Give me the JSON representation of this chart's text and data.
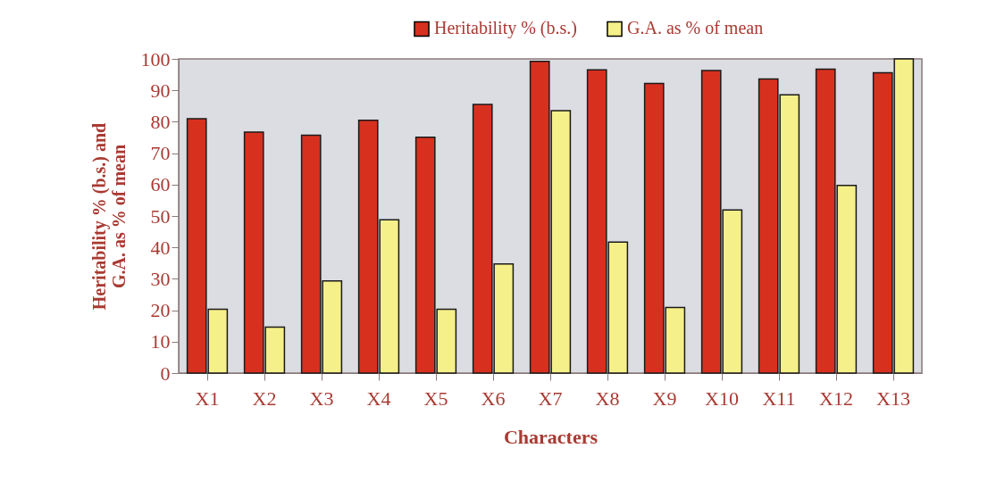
{
  "chart_data": {
    "type": "bar",
    "xlabel": "Characters",
    "ylabel": "Heritability % (b.s.) and G.A. as % of mean",
    "categories": [
      "X1",
      "X2",
      "X3",
      "X4",
      "X5",
      "X6",
      "X7",
      "X8",
      "X9",
      "X10",
      "X11",
      "X12",
      "X13"
    ],
    "series": [
      {
        "name": "Heritability % (b.s.)",
        "color": "#d8301f",
        "values": [
          81,
          76.7,
          75.7,
          80.5,
          75.1,
          85.5,
          99.2,
          96.5,
          92.2,
          96.3,
          93.6,
          96.7,
          95.6
        ]
      },
      {
        "name": "G.A. as % of mean",
        "color": "#f6f08a",
        "values": [
          20.3,
          14.6,
          29.3,
          48.8,
          20.3,
          34.7,
          83.5,
          41.7,
          20.9,
          51.9,
          88.6,
          59.7,
          100
        ]
      }
    ],
    "ylim": [
      0,
      100
    ],
    "yticks": [
      0,
      10,
      20,
      30,
      40,
      50,
      60,
      70,
      80,
      90,
      100
    ],
    "grid": false,
    "legend": "top right"
  }
}
